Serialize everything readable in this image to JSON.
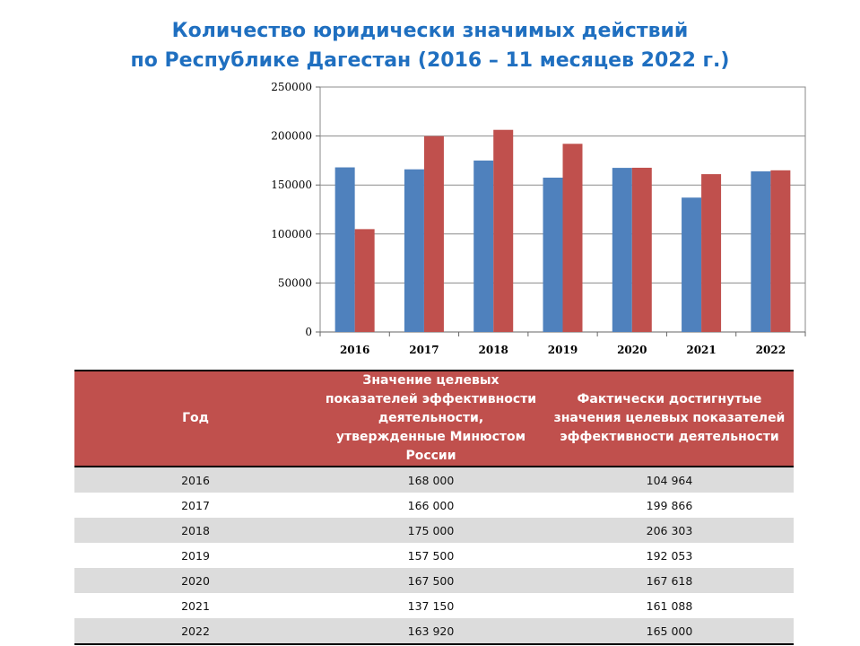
{
  "colors": {
    "title": "#1f6fc0",
    "series1": "#4f81bd",
    "series2": "#c0504d",
    "header_bg": "#c0504d",
    "row_alt": "#dcdcdc"
  },
  "title": {
    "line1": "Количество юридически значимых действий",
    "line2": "по Республике Дагестан (2016 –  11 месяцев 2022 г.)"
  },
  "chart_data": {
    "type": "bar",
    "title": "Количество юридически значимых действий по Республике Дагестан (2016 –  11 месяцев 2022 г.)",
    "categories": [
      "2016",
      "2017",
      "2018",
      "2019",
      "2020",
      "2021",
      "2022"
    ],
    "series": [
      {
        "values": [
          168000,
          166000,
          175000,
          157500,
          167500,
          137150,
          163920
        ],
        "color": "#4f81bd"
      },
      {
        "values": [
          104964,
          199866,
          206303,
          192053,
          167618,
          161088,
          165000
        ],
        "color": "#c0504d"
      }
    ],
    "ylim": [
      0,
      250000
    ],
    "yticks": [
      "0",
      "50000",
      "100000",
      "150000",
      "200000",
      "250000"
    ],
    "grid": true,
    "legend": "none",
    "xlabel": "",
    "ylabel": ""
  },
  "table": {
    "headers": [
      "Год",
      "Значение целевых показателей эффективности деятельности, утвержденные Минюстом России",
      "Фактически достигнутые значения целевых показателей эффективности деятельности"
    ],
    "rows": [
      [
        "2016",
        "168 000",
        "104 964"
      ],
      [
        "2017",
        "166 000",
        "199 866"
      ],
      [
        "2018",
        "175 000",
        "206 303"
      ],
      [
        "2019",
        "157 500",
        "192 053"
      ],
      [
        "2020",
        "167 500",
        "167 618"
      ],
      [
        "2021",
        "137 150",
        "161 088"
      ],
      [
        "2022",
        "163 920",
        "165 000"
      ]
    ]
  }
}
